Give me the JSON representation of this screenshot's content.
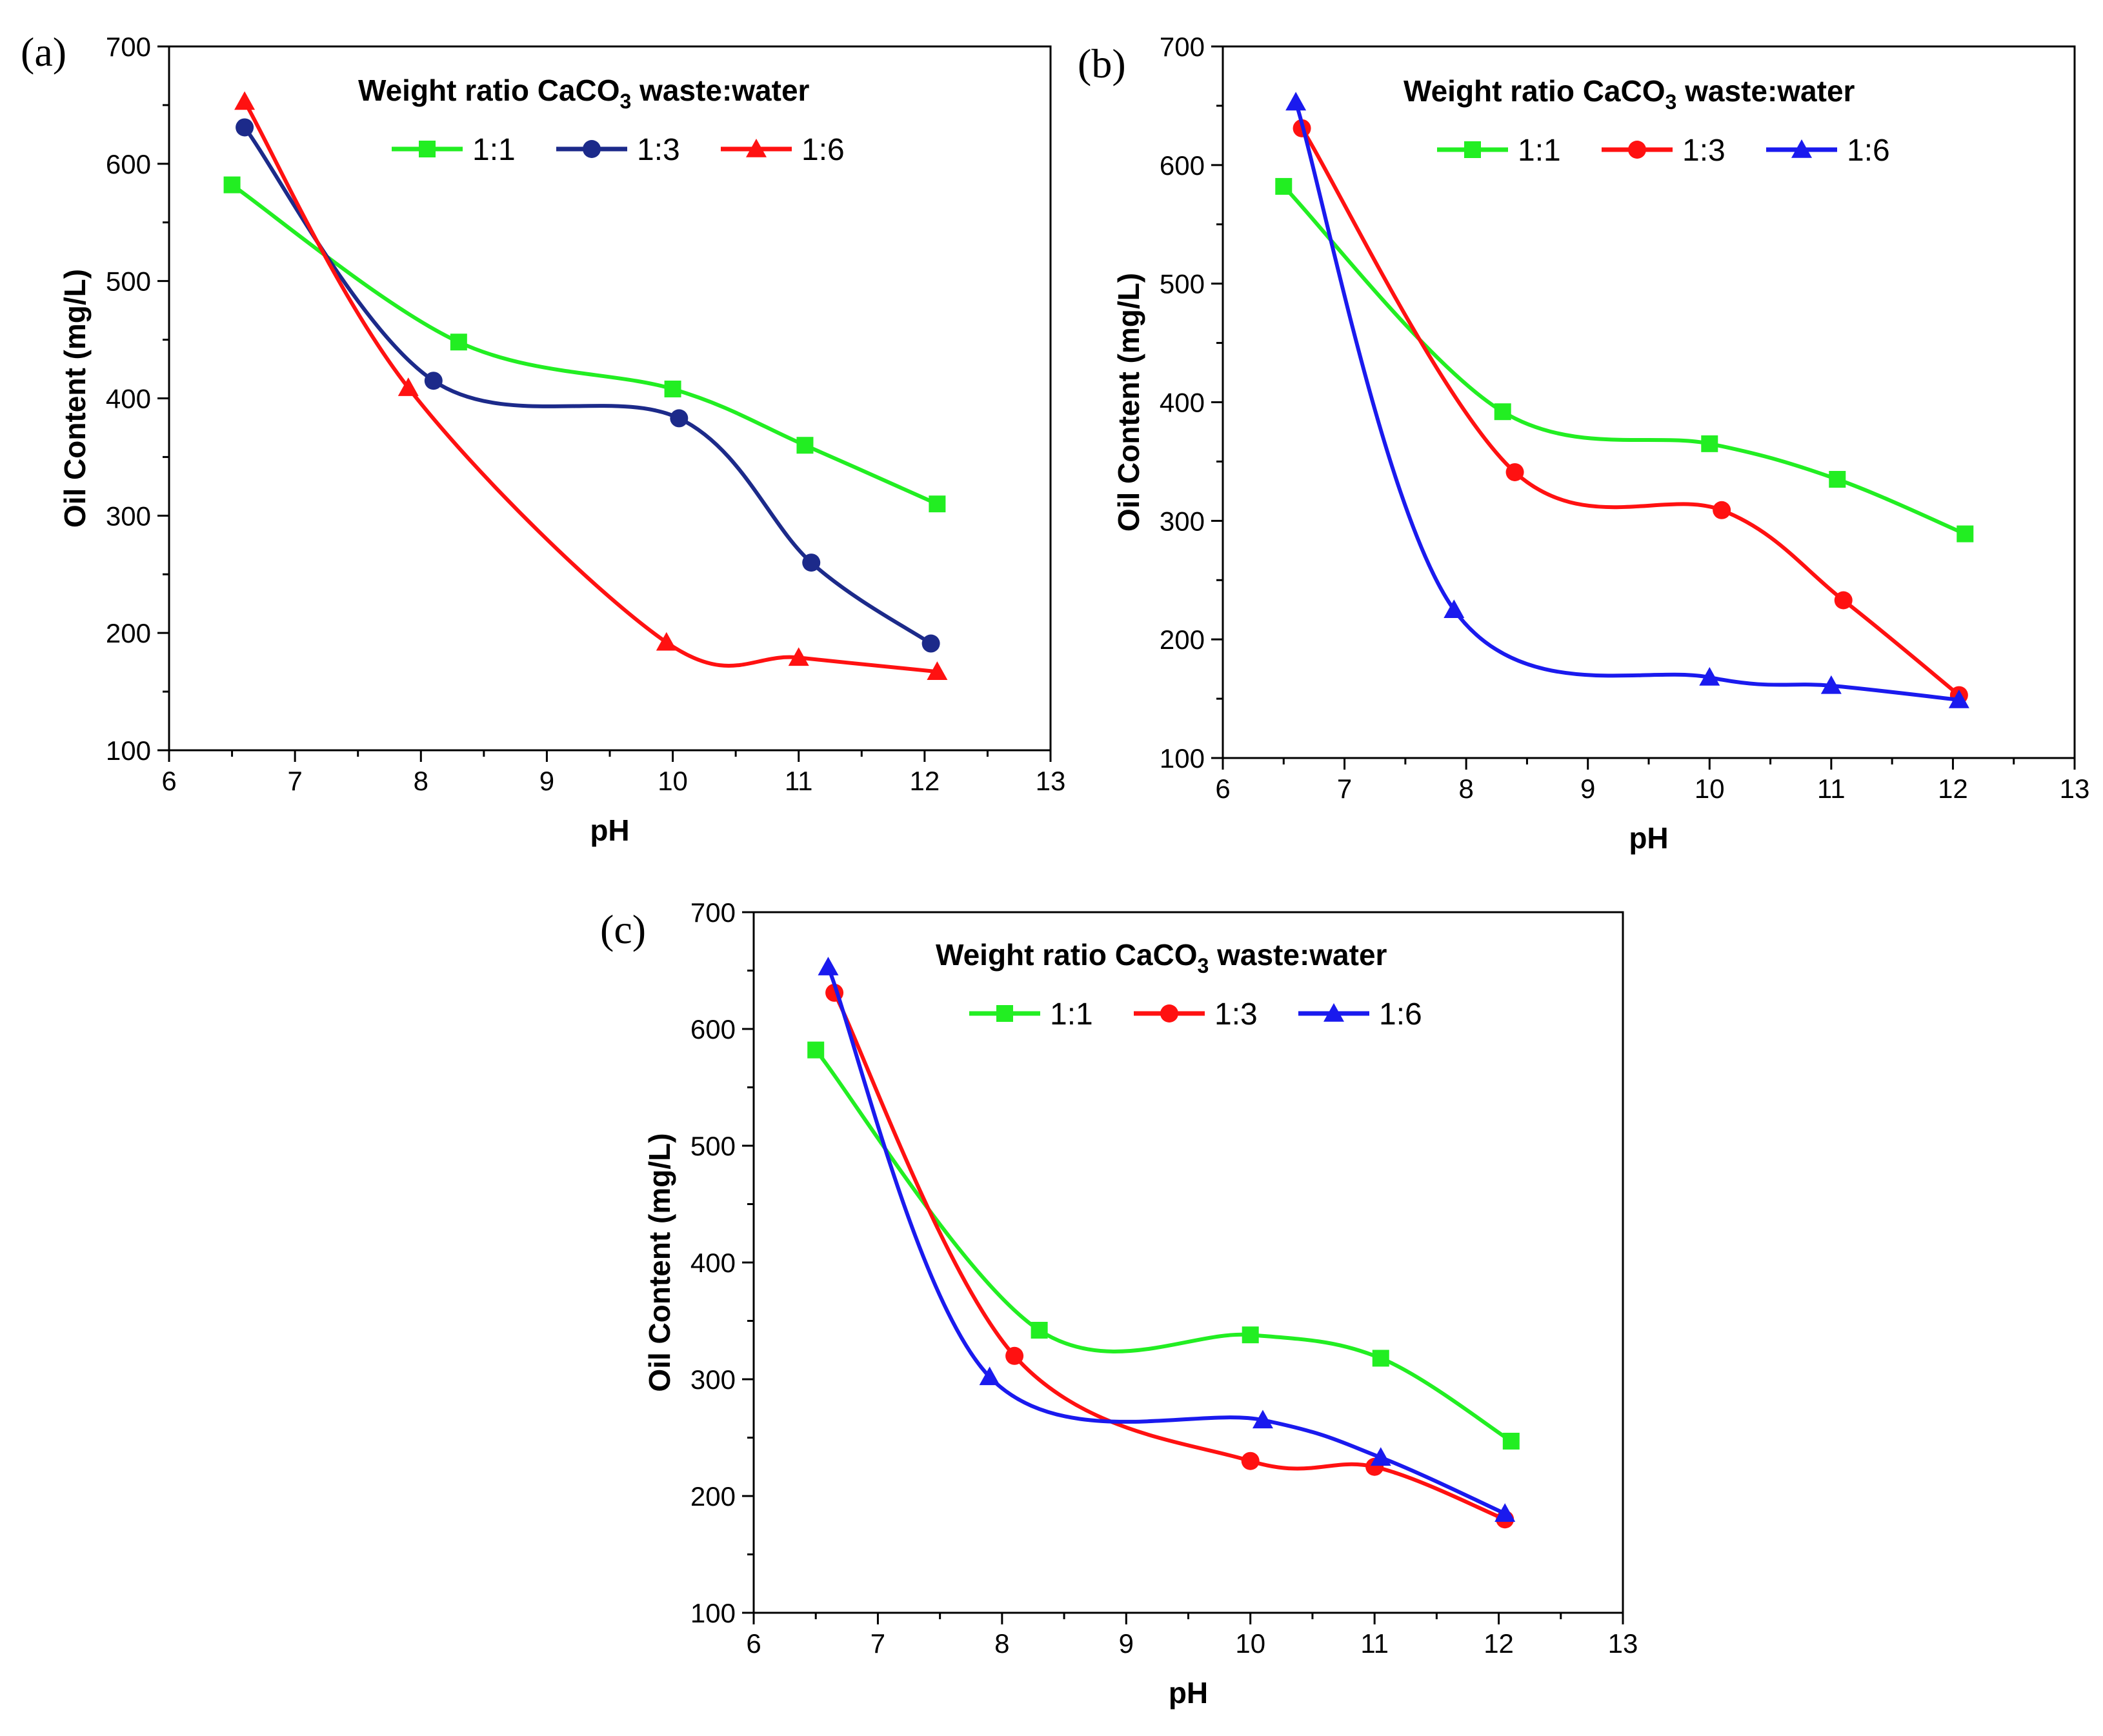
{
  "chart_data": [
    {
      "type": "line",
      "panel_label": "(a)",
      "xlabel": "pH",
      "ylabel": "Oil Content (mg/L)",
      "xlim": [
        6,
        13
      ],
      "ylim": [
        100,
        700
      ],
      "xticks": [
        "6",
        "7",
        "8",
        "9",
        "10",
        "11",
        "12",
        "13"
      ],
      "yticks": [
        "100",
        "200",
        "300",
        "400",
        "500",
        "600",
        "700"
      ],
      "legend": {
        "title": "Weight ratio CaCO",
        "title_sub": "3",
        "title_suffix": " waste:water",
        "position": "top"
      },
      "series": [
        {
          "name": "1:1",
          "color": "#22ee22",
          "marker": "square",
          "x": [
            6.5,
            8.3,
            10.0,
            11.05,
            12.1
          ],
          "y": [
            582,
            448,
            408,
            360,
            310
          ]
        },
        {
          "name": "1:3",
          "color": "#1c2a8a",
          "marker": "circle",
          "x": [
            6.6,
            8.1,
            10.05,
            11.1,
            12.05
          ],
          "y": [
            631,
            415,
            383,
            260,
            191
          ]
        },
        {
          "name": "1:6",
          "color": "#ff1111",
          "marker": "triangle",
          "x": [
            6.6,
            7.9,
            9.95,
            11.0,
            12.1
          ],
          "y": [
            653,
            409,
            192,
            179,
            167
          ]
        }
      ]
    },
    {
      "type": "line",
      "panel_label": "(b)",
      "xlabel": "pH",
      "ylabel": "Oil Content (mg/L)",
      "xlim": [
        6,
        13
      ],
      "ylim": [
        100,
        700
      ],
      "xticks": [
        "6",
        "7",
        "8",
        "9",
        "10",
        "11",
        "12",
        "13"
      ],
      "yticks": [
        "100",
        "200",
        "300",
        "400",
        "500",
        "600",
        "700"
      ],
      "legend": {
        "title": "Weight ratio CaCO",
        "title_sub": "3",
        "title_suffix": " waste:water",
        "position": "top"
      },
      "series": [
        {
          "name": "1:1",
          "color": "#22ee22",
          "marker": "square",
          "x": [
            6.5,
            8.3,
            10.0,
            11.05,
            12.1
          ],
          "y": [
            582,
            392,
            365,
            335,
            289
          ]
        },
        {
          "name": "1:3",
          "color": "#ff1111",
          "marker": "circle",
          "x": [
            6.65,
            8.4,
            10.1,
            11.1,
            12.05
          ],
          "y": [
            631,
            341,
            309,
            233,
            153
          ]
        },
        {
          "name": "1:6",
          "color": "#1a1aee",
          "marker": "triangle",
          "x": [
            6.6,
            7.9,
            10.0,
            11.0,
            12.05
          ],
          "y": [
            653,
            225,
            168,
            161,
            149
          ]
        }
      ]
    },
    {
      "type": "line",
      "panel_label": "(c)",
      "xlabel": "pH",
      "ylabel": "Oil Content (mg/L)",
      "xlim": [
        6,
        13
      ],
      "ylim": [
        100,
        700
      ],
      "xticks": [
        "6",
        "7",
        "8",
        "9",
        "10",
        "11",
        "12",
        "13"
      ],
      "yticks": [
        "100",
        "200",
        "300",
        "400",
        "500",
        "600",
        "700"
      ],
      "legend": {
        "title": "Weight ratio CaCO",
        "title_sub": "3",
        "title_suffix": " waste:water",
        "position": "top"
      },
      "series": [
        {
          "name": "1:1",
          "color": "#22ee22",
          "marker": "square",
          "x": [
            6.5,
            8.3,
            10.0,
            11.05,
            12.1
          ],
          "y": [
            582,
            342,
            338,
            318,
            247
          ]
        },
        {
          "name": "1:3",
          "color": "#ff1111",
          "marker": "circle",
          "x": [
            6.65,
            8.1,
            10.0,
            11.0,
            12.05
          ],
          "y": [
            631,
            320,
            230,
            225,
            180
          ]
        },
        {
          "name": "1:6",
          "color": "#1a1aee",
          "marker": "triangle",
          "x": [
            6.6,
            7.9,
            10.1,
            11.05,
            12.05
          ],
          "y": [
            653,
            302,
            265,
            233,
            185
          ]
        }
      ]
    }
  ]
}
